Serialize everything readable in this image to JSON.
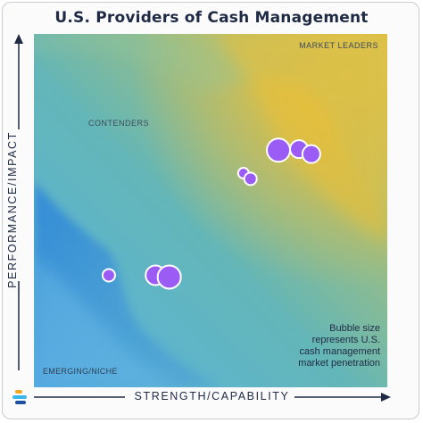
{
  "chart_data": {
    "type": "scatter",
    "title": "U.S. Providers of Cash Management",
    "xlabel": "STRENGTH/CAPABILITY",
    "ylabel": "PERFORMANCE/IMPACT",
    "xlim": [
      0,
      100
    ],
    "ylim": [
      0,
      100
    ],
    "grid": false,
    "quadrants": {
      "top_left": "CONTENDERS",
      "top_right": "MARKET LEADERS",
      "bottom_left": "EMERGING/NICHE"
    },
    "annotation": [
      "Bubble size",
      "represents U.S.",
      "cash management",
      "market penetration"
    ],
    "bubble_color": "#9b5cf6",
    "points": [
      {
        "x": 69.2,
        "y": 67.1,
        "size": 13
      },
      {
        "x": 75.0,
        "y": 67.4,
        "size": 10
      },
      {
        "x": 78.5,
        "y": 66.0,
        "size": 10
      },
      {
        "x": 59.3,
        "y": 60.6,
        "size": 6
      },
      {
        "x": 61.3,
        "y": 59.0,
        "size": 7
      },
      {
        "x": 21.2,
        "y": 31.7,
        "size": 7
      },
      {
        "x": 34.4,
        "y": 31.7,
        "size": 11
      },
      {
        "x": 38.3,
        "y": 31.2,
        "size": 13
      }
    ]
  }
}
